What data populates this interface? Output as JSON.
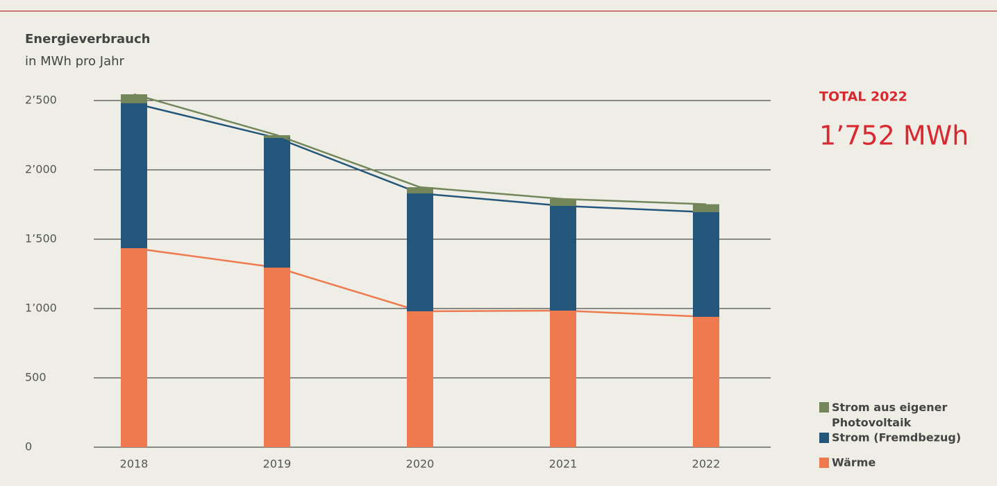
{
  "chart_data": {
    "type": "stacked_bar",
    "title": "Energieverbrauch",
    "subtitle": "in MWh pro Jahr",
    "total_title": "TOTAL 2022",
    "total_value": "1’752 MWh",
    "categories": [
      "2018",
      "2019",
      "2020",
      "2021",
      "2022"
    ],
    "series": [
      {
        "name": "Wärme",
        "color": "#ef7a50",
        "values": [
          1435,
          1295,
          980,
          985,
          940
        ]
      },
      {
        "name": "Strom (Fremdbezug)",
        "color": "#23567a",
        "values": [
          1045,
          935,
          850,
          755,
          755
        ]
      },
      {
        "name": "Strom aus eigener Photovoltaik",
        "color": "#738659",
        "values": [
          65,
          20,
          45,
          50,
          57
        ]
      }
    ],
    "ylim": [
      0,
      2500
    ],
    "yticks": [
      0,
      500,
      {
        "value": 1000,
        "label": "1’000"
      },
      {
        "value": 1500,
        "label": "1’500"
      },
      {
        "value": 2000,
        "label": "2’000"
      },
      {
        "value": 2500,
        "label": "2’500"
      }
    ],
    "grid": true
  }
}
